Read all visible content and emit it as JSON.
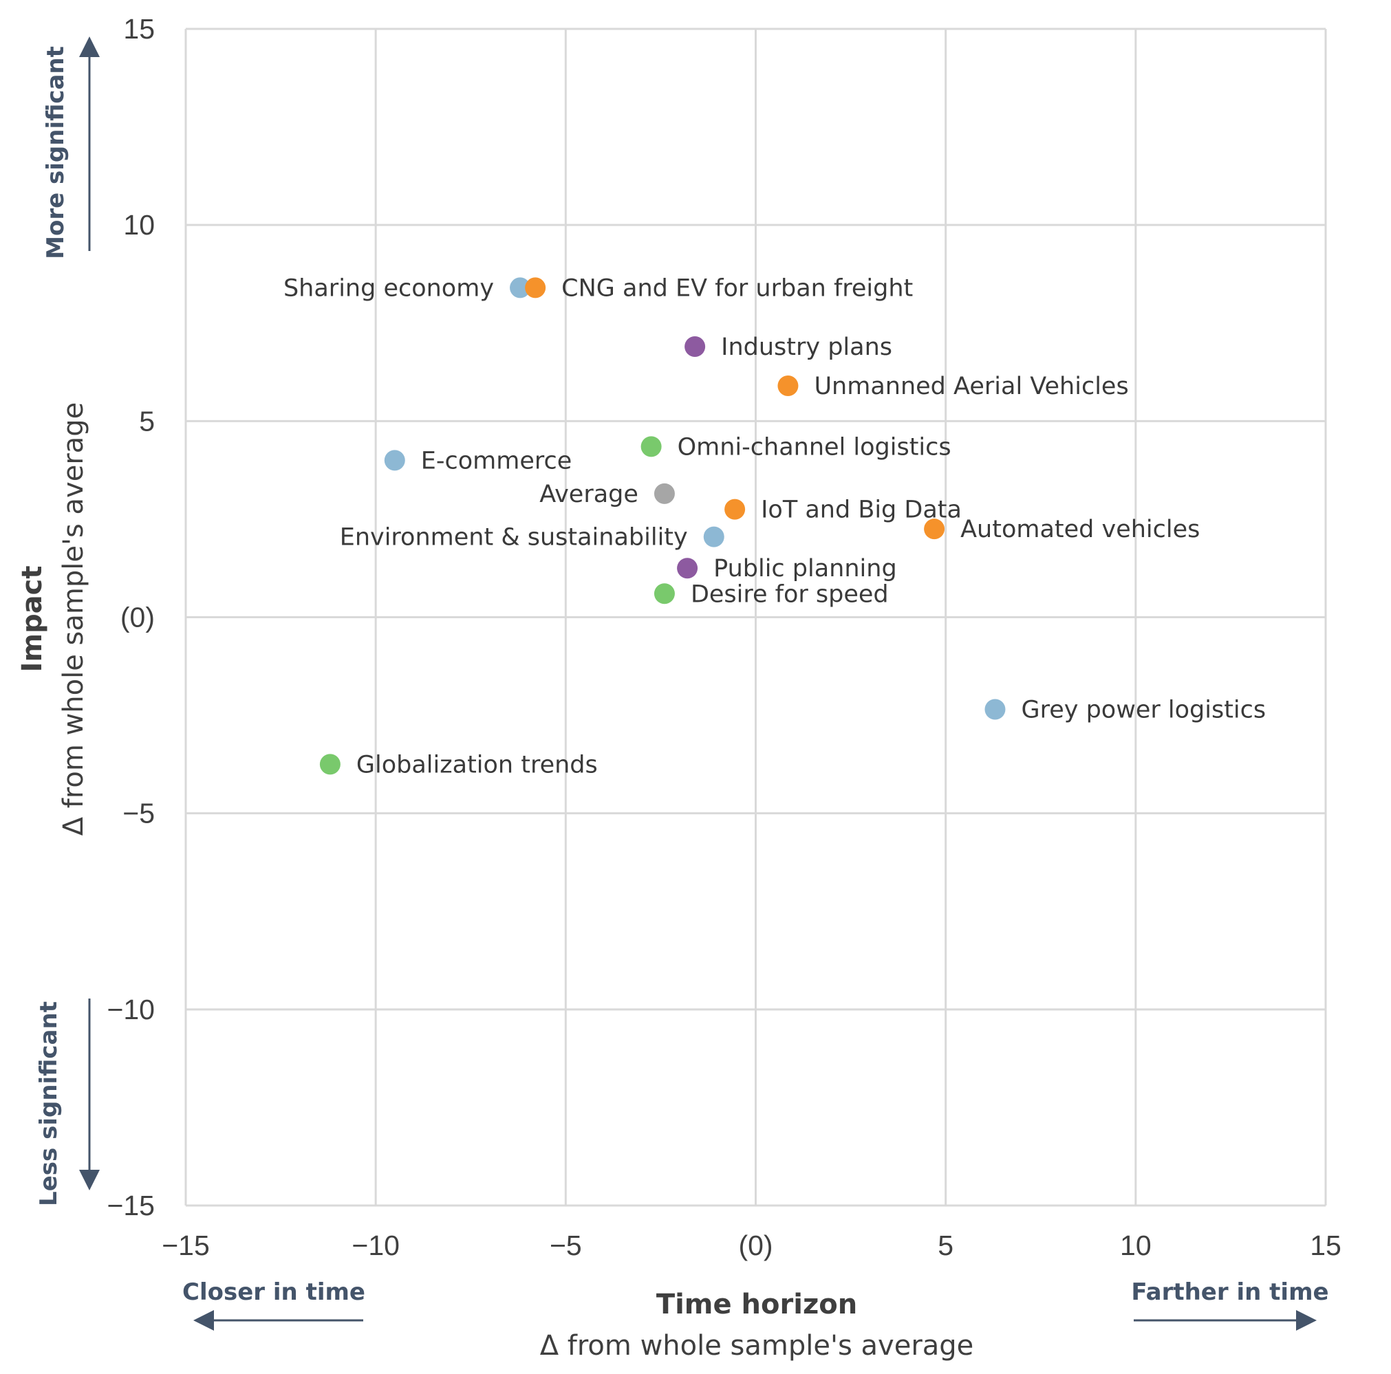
{
  "chart_data": {
    "type": "scatter",
    "title": "",
    "xlabel": "Time horizon",
    "xlabel_sub": "Δ from whole sample's average",
    "ylabel": "Impact",
    "ylabel_sub": "Δ from whole sample's average",
    "xlim": [
      -15,
      15
    ],
    "ylim": [
      -15,
      15
    ],
    "grid": true,
    "x_ticks": [
      {
        "value": -15,
        "label": "−15"
      },
      {
        "value": -10,
        "label": "−10"
      },
      {
        "value": -5,
        "label": "−5"
      },
      {
        "value": 0,
        "label": "(0)"
      },
      {
        "value": 5,
        "label": "5"
      },
      {
        "value": 10,
        "label": "10"
      },
      {
        "value": 15,
        "label": "15"
      }
    ],
    "y_ticks": [
      {
        "value": 15,
        "label": "15"
      },
      {
        "value": 10,
        "label": "10"
      },
      {
        "value": 5,
        "label": "5"
      },
      {
        "value": 0,
        "label": "(0)"
      },
      {
        "value": -5,
        "label": "−5"
      },
      {
        "value": -10,
        "label": "−10"
      },
      {
        "value": -15,
        "label": "−15"
      }
    ],
    "direction_labels": {
      "up": "More significant",
      "down": "Less significant",
      "left": "Closer in time",
      "right": "Farther in time"
    },
    "colors": {
      "blue": "#8db8d4",
      "orange": "#f5922b",
      "purple": "#8d5aa0",
      "green": "#79c96c",
      "grey": "#a6a6a6",
      "grid": "#d9d9d9",
      "arrow": "#44546a"
    },
    "points": [
      {
        "label": "Sharing economy",
        "x": -6.2,
        "y": 8.4,
        "color": "blue",
        "label_side": "left"
      },
      {
        "label": "CNG and EV for urban freight",
        "x": -5.8,
        "y": 8.4,
        "color": "orange",
        "label_side": "right"
      },
      {
        "label": "Industry plans",
        "x": -1.6,
        "y": 6.9,
        "color": "purple",
        "label_side": "right"
      },
      {
        "label": "Unmanned Aerial Vehicles",
        "x": 0.85,
        "y": 5.9,
        "color": "orange",
        "label_side": "right"
      },
      {
        "label": "Omni-channel logistics",
        "x": -2.75,
        "y": 4.35,
        "color": "green",
        "label_side": "right"
      },
      {
        "label": "E-commerce",
        "x": -9.5,
        "y": 4.0,
        "color": "blue",
        "label_side": "right"
      },
      {
        "label": "Average",
        "x": -2.4,
        "y": 3.15,
        "color": "grey",
        "label_side": "left"
      },
      {
        "label": "IoT and Big Data",
        "x": -0.55,
        "y": 2.75,
        "color": "orange",
        "label_side": "right"
      },
      {
        "label": "Automated vehicles",
        "x": 4.7,
        "y": 2.25,
        "color": "orange",
        "label_side": "right"
      },
      {
        "label": "Environment & sustainability",
        "x": -1.1,
        "y": 2.05,
        "color": "blue",
        "label_side": "left"
      },
      {
        "label": "Public planning",
        "x": -1.8,
        "y": 1.25,
        "color": "purple",
        "label_side": "right"
      },
      {
        "label": "Desire for speed",
        "x": -2.4,
        "y": 0.6,
        "color": "green",
        "label_side": "right"
      },
      {
        "label": "Grey power logistics",
        "x": 6.3,
        "y": -2.35,
        "color": "blue",
        "label_side": "right"
      },
      {
        "label": "Globalization trends",
        "x": -11.2,
        "y": -3.75,
        "color": "green",
        "label_side": "right"
      }
    ]
  }
}
